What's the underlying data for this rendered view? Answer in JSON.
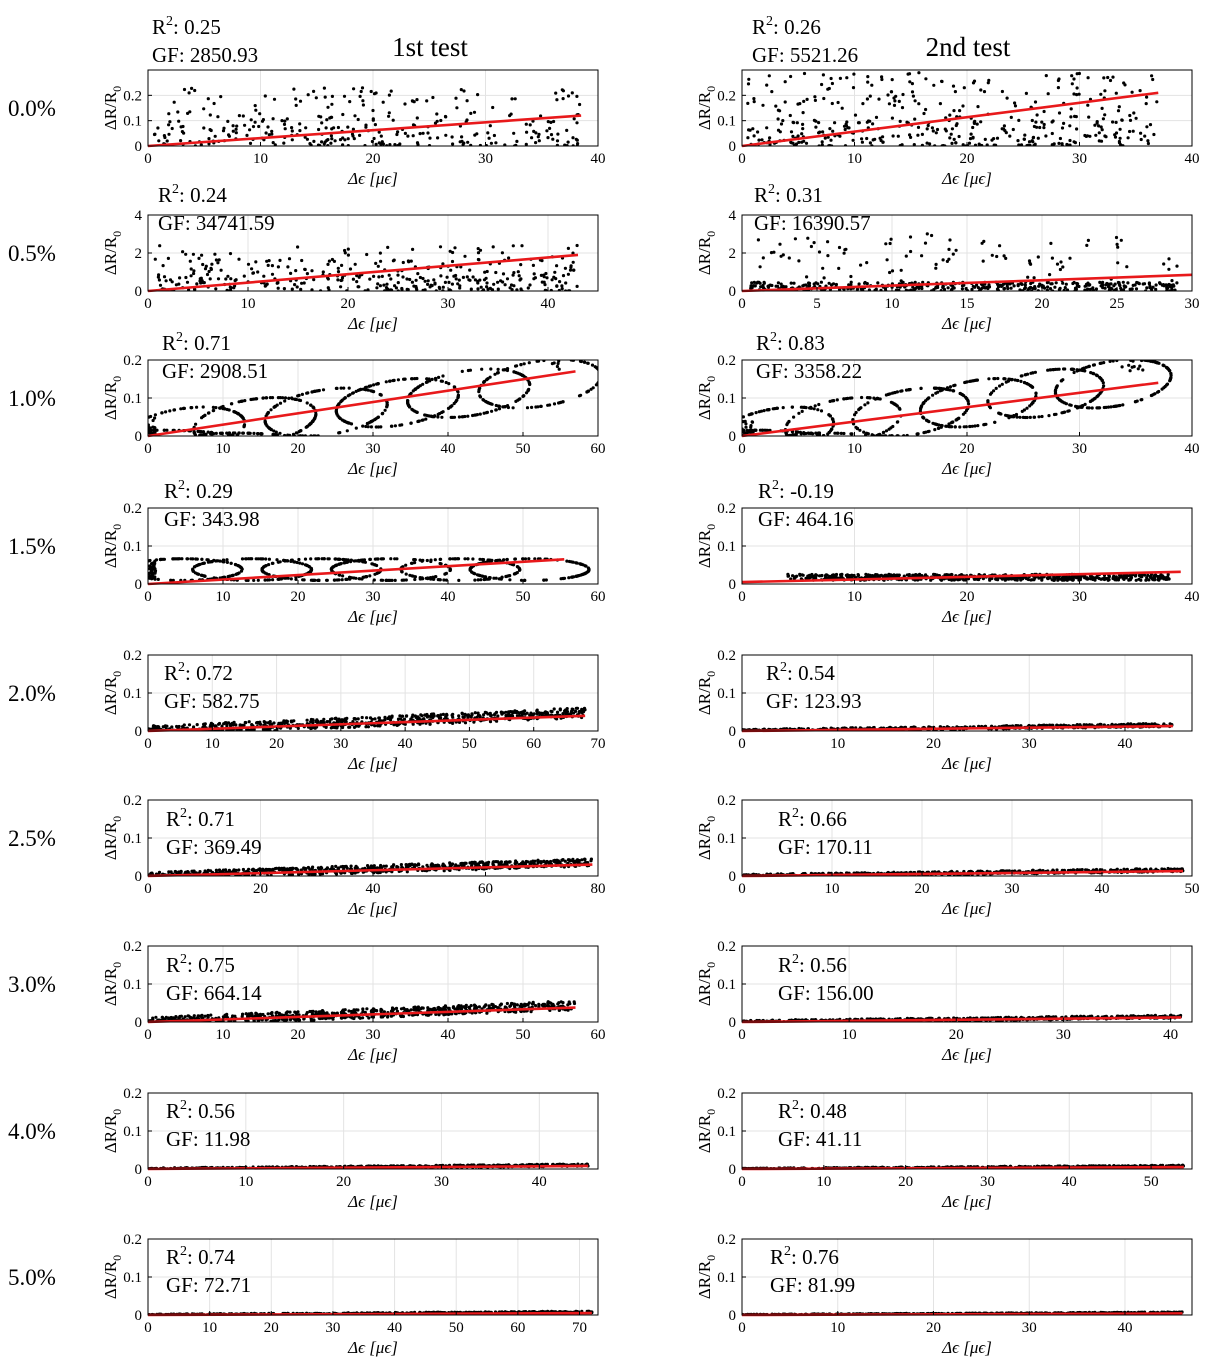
{
  "column_titles": [
    "1st test",
    "2nd test"
  ],
  "row_labels": [
    "0.0%",
    "0.5%",
    "1.0%",
    "1.5%",
    "2.0%",
    "2.5%",
    "3.0%",
    "4.0%",
    "5.0%"
  ],
  "axis_labels": {
    "x": "Δϵ [μϵ]",
    "y": "ΔR/R",
    "y_sub": "0"
  },
  "colors": {
    "points": "#000000",
    "fit_line": "#e8191b",
    "grid": "#e3e3e3",
    "axes": "#000000"
  },
  "chart_data": [
    {
      "type": "scatter",
      "row": "0.0%",
      "test": "1st test",
      "r2": "0.25",
      "gf": "2850.93",
      "xlim": [
        0,
        40
      ],
      "ylim": [
        0,
        0.3
      ],
      "xticks": [
        0,
        10,
        20,
        30,
        40
      ],
      "yticks": [
        0,
        0.1,
        0.2
      ],
      "grid": true,
      "fit": {
        "x": [
          0,
          38.5
        ],
        "y": [
          0,
          0.12
        ]
      },
      "scatter": {
        "x_range": [
          0.5,
          38.5
        ],
        "y_max": 0.23,
        "shape": "cloud",
        "trend": "flat",
        "n": 320,
        "seed": 11
      }
    },
    {
      "type": "scatter",
      "row": "0.0%",
      "test": "2nd test",
      "r2": "0.26",
      "gf": "5521.26",
      "xlim": [
        0,
        40
      ],
      "ylim": [
        0,
        0.3
      ],
      "xticks": [
        0,
        10,
        20,
        30,
        40
      ],
      "yticks": [
        0,
        0.1,
        0.2
      ],
      "grid": true,
      "fit": {
        "x": [
          0,
          37
        ],
        "y": [
          0,
          0.21
        ]
      },
      "scatter": {
        "x_range": [
          0.5,
          37
        ],
        "y_max": 0.29,
        "shape": "cloud",
        "trend": "flat",
        "n": 420,
        "seed": 12
      }
    },
    {
      "type": "scatter",
      "row": "0.5%",
      "test": "1st test",
      "r2": "0.24",
      "gf": "34741.59",
      "xlim": [
        0,
        45
      ],
      "ylim": [
        0,
        4
      ],
      "xticks": [
        0,
        10,
        20,
        30,
        40
      ],
      "yticks": [
        0,
        2,
        4
      ],
      "grid": true,
      "fit": {
        "x": [
          0,
          43
        ],
        "y": [
          0,
          1.9
        ]
      },
      "scatter": {
        "x_range": [
          0.5,
          43
        ],
        "y_max": 2.4,
        "shape": "cloud",
        "trend": "flat",
        "n": 380,
        "seed": 21
      }
    },
    {
      "type": "scatter",
      "row": "0.5%",
      "test": "2nd test",
      "r2": "0.31",
      "gf": "16390.57",
      "xlim": [
        0,
        30
      ],
      "ylim": [
        0,
        4
      ],
      "xticks": [
        0,
        5,
        10,
        15,
        20,
        25,
        30
      ],
      "yticks": [
        0,
        2,
        4
      ],
      "grid": true,
      "fit": {
        "x": [
          0,
          30
        ],
        "y": [
          0,
          0.85
        ]
      },
      "scatter": {
        "x_range": [
          0.5,
          29
        ],
        "y_max": 3.1,
        "shape": "spiky",
        "trend": "flat",
        "n": 480,
        "seed": 22
      }
    },
    {
      "type": "scatter",
      "row": "1.0%",
      "test": "1st test",
      "r2": "0.71",
      "gf": "2908.51",
      "xlim": [
        0,
        60
      ],
      "ylim": [
        0,
        0.2
      ],
      "xticks": [
        0,
        10,
        20,
        30,
        40,
        50,
        60
      ],
      "yticks": [
        0,
        0.1,
        0.2
      ],
      "grid": true,
      "fit": {
        "x": [
          0,
          57
        ],
        "y": [
          0,
          0.17
        ]
      },
      "scatter": {
        "x_range": [
          0,
          57
        ],
        "y_max": 0.2,
        "shape": "loops",
        "trend": "rising",
        "n": 700,
        "seed": 31
      }
    },
    {
      "type": "scatter",
      "row": "1.0%",
      "test": "2nd test",
      "r2": "0.83",
      "gf": "3358.22",
      "xlim": [
        0,
        40
      ],
      "ylim": [
        0,
        0.2
      ],
      "xticks": [
        0,
        10,
        20,
        30,
        40
      ],
      "yticks": [
        0,
        0.1,
        0.2
      ],
      "grid": true,
      "fit": {
        "x": [
          0,
          37
        ],
        "y": [
          0,
          0.14
        ]
      },
      "scatter": {
        "x_range": [
          0,
          36
        ],
        "y_max": 0.2,
        "shape": "loops",
        "trend": "rising",
        "n": 700,
        "seed": 32
      }
    },
    {
      "type": "scatter",
      "row": "1.5%",
      "test": "1st test",
      "r2": "0.29",
      "gf": "343.98",
      "xlim": [
        0,
        60
      ],
      "ylim": [
        0,
        0.2
      ],
      "xticks": [
        0,
        10,
        20,
        30,
        40,
        50,
        60
      ],
      "yticks": [
        0,
        0.1,
        0.2
      ],
      "grid": true,
      "fit": {
        "x": [
          0,
          55.5
        ],
        "y": [
          0,
          0.065
        ]
      },
      "scatter": {
        "x_range": [
          0,
          55.5
        ],
        "y_max": 0.095,
        "shape": "loops",
        "trend": "flat",
        "n": 700,
        "seed": 41
      }
    },
    {
      "type": "scatter",
      "row": "1.5%",
      "test": "2nd test",
      "r2": "-0.19",
      "gf": "464.16",
      "xlim": [
        0,
        40
      ],
      "ylim": [
        0,
        0.2
      ],
      "xticks": [
        0,
        10,
        20,
        30,
        40
      ],
      "yticks": [
        0,
        0.1,
        0.2
      ],
      "grid": true,
      "fit": {
        "x": [
          0,
          39
        ],
        "y": [
          0.005,
          0.032
        ]
      },
      "scatter": {
        "x_range": [
          4,
          38
        ],
        "y_max": 0.035,
        "shape": "band",
        "trend": "flat",
        "n": 600,
        "seed": 42
      }
    },
    {
      "type": "scatter",
      "row": "2.0%",
      "test": "1st test",
      "r2": "0.72",
      "gf": "582.75",
      "xlim": [
        0,
        70
      ],
      "ylim": [
        0,
        0.2
      ],
      "xticks": [
        0,
        10,
        20,
        30,
        40,
        50,
        60,
        70
      ],
      "yticks": [
        0,
        0.1,
        0.2
      ],
      "grid": true,
      "fit": {
        "x": [
          0,
          68
        ],
        "y": [
          0,
          0.04
        ]
      },
      "scatter": {
        "x_range": [
          0,
          68
        ],
        "y_max": 0.06,
        "shape": "band",
        "trend": "rising",
        "n": 700,
        "seed": 51
      }
    },
    {
      "type": "scatter",
      "row": "2.0%",
      "test": "2nd test",
      "r2": "0.54",
      "gf": "123.93",
      "xlim": [
        0,
        47
      ],
      "ylim": [
        0,
        0.2
      ],
      "xticks": [
        0,
        10,
        20,
        30,
        40
      ],
      "yticks": [
        0,
        0.1,
        0.2
      ],
      "grid": true,
      "fit": {
        "x": [
          0,
          45
        ],
        "y": [
          0,
          0.013
        ]
      },
      "scatter": {
        "x_range": [
          0,
          45
        ],
        "y_max": 0.02,
        "shape": "band",
        "trend": "rising",
        "n": 600,
        "seed": 52
      }
    },
    {
      "type": "scatter",
      "row": "2.5%",
      "test": "1st test",
      "r2": "0.71",
      "gf": "369.49",
      "xlim": [
        0,
        80
      ],
      "ylim": [
        0,
        0.2
      ],
      "xticks": [
        0,
        20,
        40,
        60,
        80
      ],
      "yticks": [
        0,
        0.1,
        0.2
      ],
      "grid": true,
      "fit": {
        "x": [
          0,
          79
        ],
        "y": [
          0,
          0.03
        ]
      },
      "scatter": {
        "x_range": [
          0,
          79
        ],
        "y_max": 0.045,
        "shape": "band",
        "trend": "rising",
        "n": 700,
        "seed": 61
      }
    },
    {
      "type": "scatter",
      "row": "2.5%",
      "test": "2nd test",
      "r2": "0.66",
      "gf": "170.11",
      "xlim": [
        0,
        50
      ],
      "ylim": [
        0,
        0.2
      ],
      "xticks": [
        0,
        10,
        20,
        30,
        40,
        50
      ],
      "yticks": [
        0,
        0.1,
        0.2
      ],
      "grid": true,
      "fit": {
        "x": [
          0,
          49
        ],
        "y": [
          0,
          0.013
        ]
      },
      "scatter": {
        "x_range": [
          0,
          49
        ],
        "y_max": 0.02,
        "shape": "band",
        "trend": "rising",
        "n": 600,
        "seed": 62
      }
    },
    {
      "type": "scatter",
      "row": "3.0%",
      "test": "1st test",
      "r2": "0.75",
      "gf": "664.14",
      "xlim": [
        0,
        60
      ],
      "ylim": [
        0,
        0.2
      ],
      "xticks": [
        0,
        10,
        20,
        30,
        40,
        50,
        60
      ],
      "yticks": [
        0,
        0.1,
        0.2
      ],
      "grid": true,
      "fit": {
        "x": [
          0,
          57
        ],
        "y": [
          0,
          0.038
        ]
      },
      "scatter": {
        "x_range": [
          0,
          57
        ],
        "y_max": 0.055,
        "shape": "band",
        "trend": "rising",
        "n": 700,
        "seed": 71
      }
    },
    {
      "type": "scatter",
      "row": "3.0%",
      "test": "2nd test",
      "r2": "0.56",
      "gf": "156.00",
      "xlim": [
        0,
        42
      ],
      "ylim": [
        0,
        0.2
      ],
      "xticks": [
        0,
        10,
        20,
        30,
        40
      ],
      "yticks": [
        0,
        0.1,
        0.2
      ],
      "grid": true,
      "fit": {
        "x": [
          0,
          41
        ],
        "y": [
          0,
          0.012
        ]
      },
      "scatter": {
        "x_range": [
          0,
          41
        ],
        "y_max": 0.018,
        "shape": "band",
        "trend": "rising",
        "n": 600,
        "seed": 72
      }
    },
    {
      "type": "scatter",
      "row": "4.0%",
      "test": "1st test",
      "r2": "0.56",
      "gf": "11.98",
      "xlim": [
        0,
        46
      ],
      "ylim": [
        0,
        0.2
      ],
      "xticks": [
        0,
        10,
        20,
        30,
        40
      ],
      "yticks": [
        0,
        0.1,
        0.2
      ],
      "grid": true,
      "fit": {
        "x": [
          0,
          45
        ],
        "y": [
          0,
          0.008
        ]
      },
      "scatter": {
        "x_range": [
          0,
          45
        ],
        "y_max": 0.013,
        "shape": "band",
        "trend": "rising",
        "n": 600,
        "seed": 81
      }
    },
    {
      "type": "scatter",
      "row": "4.0%",
      "test": "2nd test",
      "r2": "0.48",
      "gf": "41.11",
      "xlim": [
        0,
        55
      ],
      "ylim": [
        0,
        0.2
      ],
      "xticks": [
        0,
        10,
        20,
        30,
        40,
        50
      ],
      "yticks": [
        0,
        0.1,
        0.2
      ],
      "grid": true,
      "fit": {
        "x": [
          0,
          54
        ],
        "y": [
          0,
          0.005
        ]
      },
      "scatter": {
        "x_range": [
          0,
          54
        ],
        "y_max": 0.01,
        "shape": "band",
        "trend": "rising",
        "n": 600,
        "seed": 82
      }
    },
    {
      "type": "scatter",
      "row": "5.0%",
      "test": "1st test",
      "r2": "0.74",
      "gf": "72.71",
      "xlim": [
        0,
        73
      ],
      "ylim": [
        0,
        0.2
      ],
      "xticks": [
        0,
        10,
        20,
        30,
        40,
        50,
        60,
        70
      ],
      "yticks": [
        0,
        0.1,
        0.2
      ],
      "grid": true,
      "fit": {
        "x": [
          0,
          72
        ],
        "y": [
          0,
          0.005
        ]
      },
      "scatter": {
        "x_range": [
          0,
          72
        ],
        "y_max": 0.01,
        "shape": "band",
        "trend": "rising",
        "n": 600,
        "seed": 91
      }
    },
    {
      "type": "scatter",
      "row": "5.0%",
      "test": "2nd test",
      "r2": "0.76",
      "gf": "81.99",
      "xlim": [
        0,
        47
      ],
      "ylim": [
        0,
        0.2
      ],
      "xticks": [
        0,
        10,
        20,
        30,
        40
      ],
      "yticks": [
        0,
        0.1,
        0.2
      ],
      "grid": true,
      "fit": {
        "x": [
          0,
          46
        ],
        "y": [
          0,
          0.004
        ]
      },
      "scatter": {
        "x_range": [
          0,
          46
        ],
        "y_max": 0.008,
        "shape": "band",
        "trend": "rising",
        "n": 600,
        "seed": 92
      }
    }
  ]
}
